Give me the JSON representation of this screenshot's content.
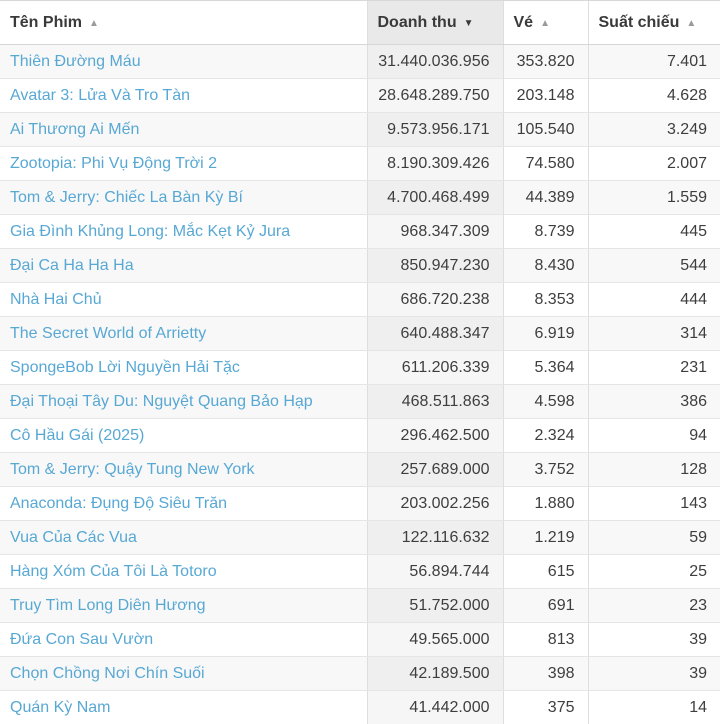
{
  "table": {
    "columns": [
      {
        "label": "Tên Phim",
        "sort_dir": "asc",
        "sort_active": false
      },
      {
        "label": "Doanh thu",
        "sort_dir": "desc",
        "sort_active": true
      },
      {
        "label": "Vé",
        "sort_dir": "asc",
        "sort_active": false
      },
      {
        "label": "Suất chiếu",
        "sort_dir": "asc",
        "sort_active": false
      }
    ],
    "sort_icons": {
      "asc": "▲",
      "desc": "▼"
    },
    "rows": [
      {
        "name": "Thiên Đường Máu",
        "revenue": "31.440.036.956",
        "tickets": "353.820",
        "screenings": "7.401"
      },
      {
        "name": "Avatar 3: Lửa Và Tro Tàn",
        "revenue": "28.648.289.750",
        "tickets": "203.148",
        "screenings": "4.628"
      },
      {
        "name": "Ai Thương Ai Mến",
        "revenue": "9.573.956.171",
        "tickets": "105.540",
        "screenings": "3.249"
      },
      {
        "name": "Zootopia: Phi Vụ Động Trời 2",
        "revenue": "8.190.309.426",
        "tickets": "74.580",
        "screenings": "2.007"
      },
      {
        "name": "Tom & Jerry: Chiếc La Bàn Kỳ Bí",
        "revenue": "4.700.468.499",
        "tickets": "44.389",
        "screenings": "1.559"
      },
      {
        "name": "Gia Đình Khủng Long: Mắc Kẹt Kỷ Jura",
        "revenue": "968.347.309",
        "tickets": "8.739",
        "screenings": "445"
      },
      {
        "name": "Đại Ca Ha Ha Ha",
        "revenue": "850.947.230",
        "tickets": "8.430",
        "screenings": "544"
      },
      {
        "name": "Nhà Hai Chủ",
        "revenue": "686.720.238",
        "tickets": "8.353",
        "screenings": "444"
      },
      {
        "name": "The Secret World of Arrietty",
        "revenue": "640.488.347",
        "tickets": "6.919",
        "screenings": "314"
      },
      {
        "name": "SpongeBob Lời Nguyền Hải Tặc",
        "revenue": "611.206.339",
        "tickets": "5.364",
        "screenings": "231"
      },
      {
        "name": "Đại Thoại Tây Du: Nguyệt Quang Bảo Hạp",
        "revenue": "468.511.863",
        "tickets": "4.598",
        "screenings": "386"
      },
      {
        "name": "Cô Hầu Gái (2025)",
        "revenue": "296.462.500",
        "tickets": "2.324",
        "screenings": "94"
      },
      {
        "name": "Tom & Jerry: Quậy Tung New York",
        "revenue": "257.689.000",
        "tickets": "3.752",
        "screenings": "128"
      },
      {
        "name": "Anaconda: Đụng Độ Siêu Trăn",
        "revenue": "203.002.256",
        "tickets": "1.880",
        "screenings": "143"
      },
      {
        "name": "Vua Của Các Vua",
        "revenue": "122.116.632",
        "tickets": "1.219",
        "screenings": "59"
      },
      {
        "name": "Hàng Xóm Của Tôi Là Totoro",
        "revenue": "56.894.744",
        "tickets": "615",
        "screenings": "25"
      },
      {
        "name": "Truy Tìm Long Diên Hương",
        "revenue": "51.752.000",
        "tickets": "691",
        "screenings": "23"
      },
      {
        "name": "Đứa Con Sau Vườn",
        "revenue": "49.565.000",
        "tickets": "813",
        "screenings": "39"
      },
      {
        "name": "Chọn Chồng Nơi Chín Suối",
        "revenue": "42.189.500",
        "tickets": "398",
        "screenings": "39"
      },
      {
        "name": "Quán Kỳ Nam",
        "revenue": "41.442.000",
        "tickets": "375",
        "screenings": "14"
      }
    ]
  }
}
